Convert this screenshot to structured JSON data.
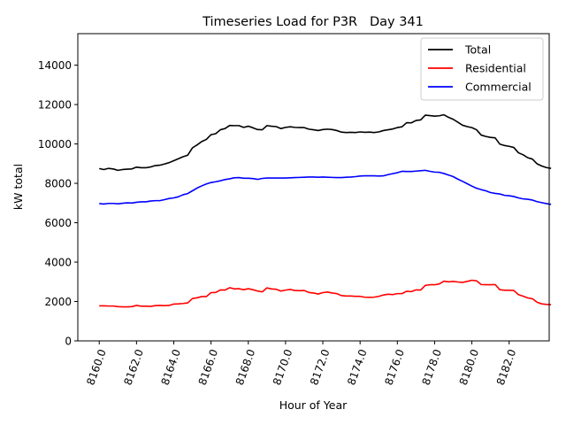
{
  "chart_data": {
    "type": "line",
    "title": "Timeseries Load for P3R   Day 341",
    "xlabel": "Hour of Year",
    "ylabel": "kW total",
    "xlim": [
      8158.85,
      8184.15
    ],
    "ylim": [
      0,
      15600
    ],
    "xticks": [
      8160,
      8162,
      8164,
      8166,
      8168,
      8170,
      8172,
      8174,
      8176,
      8178,
      8180,
      8182
    ],
    "xtick_labels": [
      "8160.0",
      "8162.0",
      "8164.0",
      "8166.0",
      "8168.0",
      "8170.0",
      "8172.0",
      "8174.0",
      "8176.0",
      "8178.0",
      "8180.0",
      "8182.0"
    ],
    "yticks": [
      0,
      2000,
      4000,
      6000,
      8000,
      10000,
      12000,
      14000
    ],
    "ytick_labels": [
      "0",
      "2000",
      "4000",
      "6000",
      "8000",
      "10000",
      "12000",
      "14000"
    ],
    "legend_position": "top-right",
    "x_start": 8160,
    "x_step": 0.25,
    "series": [
      {
        "name": "Total",
        "color": "#000000",
        "values": [
          8750,
          8700,
          8760,
          8730,
          8660,
          8700,
          8720,
          8730,
          8820,
          8790,
          8790,
          8830,
          8900,
          8920,
          8980,
          9050,
          9150,
          9250,
          9350,
          9430,
          9800,
          9950,
          10120,
          10230,
          10470,
          10520,
          10720,
          10780,
          10940,
          10930,
          10930,
          10840,
          10900,
          10820,
          10730,
          10720,
          10930,
          10900,
          10880,
          10780,
          10840,
          10870,
          10840,
          10830,
          10830,
          10750,
          10720,
          10680,
          10730,
          10750,
          10730,
          10680,
          10600,
          10580,
          10590,
          10580,
          10610,
          10590,
          10600,
          10580,
          10610,
          10680,
          10720,
          10760,
          10830,
          10870,
          11080,
          11070,
          11190,
          11220,
          11460,
          11440,
          11410,
          11430,
          11480,
          11350,
          11250,
          11100,
          10950,
          10880,
          10830,
          10720,
          10450,
          10380,
          10330,
          10310,
          9990,
          9920,
          9880,
          9820,
          9550,
          9450,
          9300,
          9230,
          8990,
          8880,
          8800,
          8760
        ]
      },
      {
        "name": "Residential",
        "color": "#ff0000",
        "values": [
          1780,
          1780,
          1770,
          1770,
          1740,
          1730,
          1730,
          1740,
          1800,
          1760,
          1760,
          1750,
          1790,
          1800,
          1790,
          1800,
          1870,
          1880,
          1900,
          1930,
          2150,
          2190,
          2250,
          2250,
          2450,
          2460,
          2590,
          2580,
          2700,
          2640,
          2650,
          2600,
          2650,
          2600,
          2530,
          2490,
          2690,
          2640,
          2620,
          2530,
          2580,
          2610,
          2560,
          2550,
          2560,
          2460,
          2430,
          2380,
          2450,
          2480,
          2430,
          2400,
          2300,
          2280,
          2280,
          2260,
          2260,
          2220,
          2210,
          2220,
          2260,
          2330,
          2370,
          2350,
          2400,
          2400,
          2520,
          2500,
          2590,
          2580,
          2820,
          2850,
          2850,
          2890,
          3030,
          3000,
          3020,
          2990,
          2970,
          3020,
          3080,
          3050,
          2860,
          2850,
          2850,
          2860,
          2600,
          2570,
          2570,
          2560,
          2350,
          2270,
          2180,
          2140,
          1960,
          1880,
          1850,
          1840
        ]
      },
      {
        "name": "Commercial",
        "color": "#0000ff",
        "values": [
          6970,
          6950,
          6980,
          6980,
          6960,
          6990,
          7010,
          7000,
          7040,
          7060,
          7060,
          7100,
          7120,
          7120,
          7170,
          7230,
          7260,
          7320,
          7420,
          7480,
          7620,
          7760,
          7870,
          7970,
          8040,
          8080,
          8130,
          8190,
          8230,
          8280,
          8290,
          8260,
          8260,
          8240,
          8200,
          8250,
          8270,
          8270,
          8270,
          8270,
          8270,
          8280,
          8290,
          8300,
          8310,
          8320,
          8320,
          8310,
          8320,
          8310,
          8300,
          8290,
          8290,
          8310,
          8320,
          8340,
          8370,
          8380,
          8380,
          8380,
          8370,
          8380,
          8440,
          8490,
          8540,
          8610,
          8600,
          8600,
          8620,
          8640,
          8660,
          8610,
          8570,
          8560,
          8500,
          8420,
          8340,
          8210,
          8100,
          7980,
          7860,
          7750,
          7680,
          7620,
          7530,
          7490,
          7460,
          7390,
          7370,
          7330,
          7260,
          7210,
          7190,
          7150,
          7070,
          7020,
          6970,
          6930
        ]
      }
    ]
  }
}
